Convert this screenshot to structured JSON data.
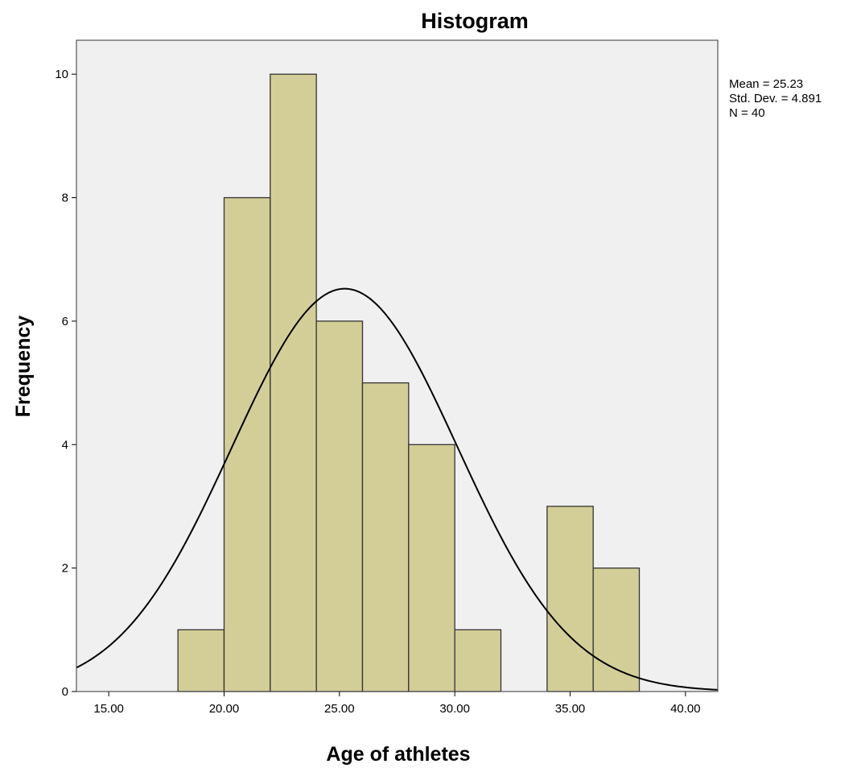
{
  "chart_data": {
    "type": "bar",
    "title": "Histogram",
    "xlabel": "Age of athletes",
    "ylabel": "Frequency",
    "bins": [
      {
        "start": 18,
        "end": 20,
        "count": 1
      },
      {
        "start": 20,
        "end": 22,
        "count": 8
      },
      {
        "start": 22,
        "end": 24,
        "count": 10
      },
      {
        "start": 24,
        "end": 26,
        "count": 6
      },
      {
        "start": 26,
        "end": 28,
        "count": 5
      },
      {
        "start": 28,
        "end": 30,
        "count": 4
      },
      {
        "start": 30,
        "end": 32,
        "count": 1
      },
      {
        "start": 34,
        "end": 36,
        "count": 3
      },
      {
        "start": 36,
        "end": 38,
        "count": 2
      }
    ],
    "x_ticks": [
      15,
      20,
      25,
      30,
      35,
      40
    ],
    "x_tick_labels": [
      "15.00",
      "20.00",
      "25.00",
      "30.00",
      "35.00",
      "40.00"
    ],
    "y_ticks": [
      0,
      2,
      4,
      6,
      8,
      10
    ],
    "y_tick_labels": [
      "0",
      "2",
      "4",
      "6",
      "8",
      "10"
    ],
    "xlim": [
      13.6,
      41.4
    ],
    "ylim": [
      0,
      10.55
    ],
    "normal_curve": {
      "mean": 25.23,
      "sd": 4.891,
      "n": 40,
      "bin_width": 2
    },
    "stats_labels": [
      "Mean = 25.23",
      "Std. Dev. = 4.891",
      "N = 40"
    ],
    "grid": false,
    "colors": {
      "bar_fill": "#d3ce97",
      "bar_stroke": "#333333",
      "plot_background": "#f0f0f0",
      "curve": "#000000"
    }
  }
}
